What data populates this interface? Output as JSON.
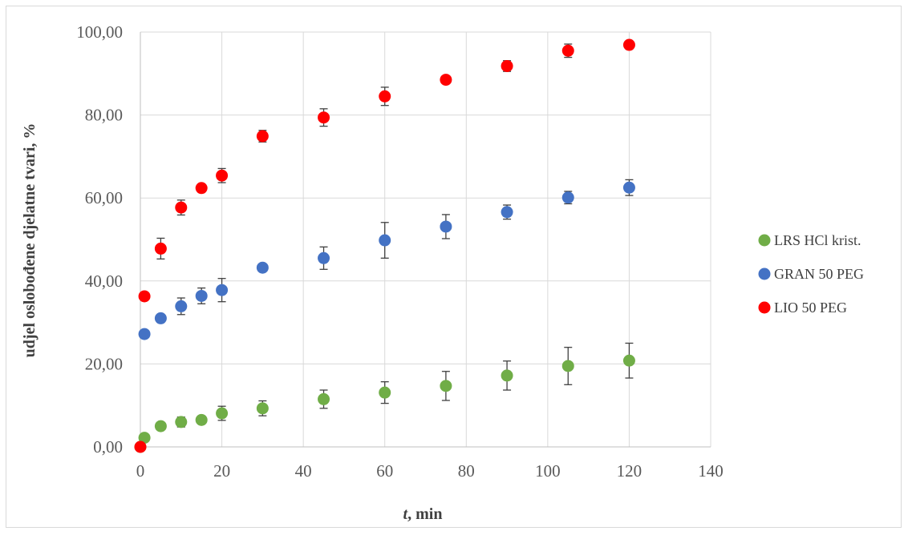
{
  "chart_data": {
    "type": "scatter",
    "xlabel_italic": "t",
    "xlabel_rest": ", min",
    "ylabel": "udjel oslobođene djelatne tvari, %",
    "xlim": [
      0,
      140
    ],
    "ylim": [
      0,
      100
    ],
    "x_ticks": [
      "0",
      "20",
      "40",
      "60",
      "80",
      "100",
      "120",
      "140"
    ],
    "y_ticks": [
      "0,00",
      "20,00",
      "40,00",
      "60,00",
      "80,00",
      "100,00"
    ],
    "grid": true,
    "legend_position": "right",
    "series": [
      {
        "name": "LRS HCl krist.",
        "color": "#70ad47",
        "points": [
          {
            "x": 0,
            "y": 0,
            "err": 0
          },
          {
            "x": 1,
            "y": 2.2,
            "err": 0
          },
          {
            "x": 5,
            "y": 5.0,
            "err": 0
          },
          {
            "x": 10,
            "y": 6.0,
            "err": 1.2
          },
          {
            "x": 15,
            "y": 6.5,
            "err": 0.8
          },
          {
            "x": 20,
            "y": 8.1,
            "err": 1.7
          },
          {
            "x": 30,
            "y": 9.3,
            "err": 1.8
          },
          {
            "x": 45,
            "y": 11.5,
            "err": 2.2
          },
          {
            "x": 60,
            "y": 13.1,
            "err": 2.6
          },
          {
            "x": 75,
            "y": 14.7,
            "err": 3.5
          },
          {
            "x": 90,
            "y": 17.2,
            "err": 3.5
          },
          {
            "x": 105,
            "y": 19.5,
            "err": 4.5
          },
          {
            "x": 120,
            "y": 20.8,
            "err": 4.2
          }
        ]
      },
      {
        "name": "GRAN 50 PEG",
        "color": "#4472c4",
        "points": [
          {
            "x": 1,
            "y": 27.2,
            "err": 0
          },
          {
            "x": 5,
            "y": 31.0,
            "err": 0
          },
          {
            "x": 10,
            "y": 33.9,
            "err": 2.0
          },
          {
            "x": 15,
            "y": 36.4,
            "err": 1.9
          },
          {
            "x": 20,
            "y": 37.8,
            "err": 2.8
          },
          {
            "x": 30,
            "y": 43.2,
            "err": 0
          },
          {
            "x": 45,
            "y": 45.5,
            "err": 2.7
          },
          {
            "x": 60,
            "y": 49.8,
            "err": 4.3
          },
          {
            "x": 75,
            "y": 53.1,
            "err": 2.9
          },
          {
            "x": 90,
            "y": 56.6,
            "err": 1.7
          },
          {
            "x": 105,
            "y": 60.1,
            "err": 1.5
          },
          {
            "x": 120,
            "y": 62.5,
            "err": 1.9
          }
        ]
      },
      {
        "name": "LIO 50 PEG",
        "color": "#ff0000",
        "points": [
          {
            "x": 0,
            "y": 0,
            "err": 0
          },
          {
            "x": 1,
            "y": 36.3,
            "err": 0
          },
          {
            "x": 5,
            "y": 47.8,
            "err": 2.5
          },
          {
            "x": 10,
            "y": 57.7,
            "err": 1.8
          },
          {
            "x": 15,
            "y": 62.4,
            "err": 0
          },
          {
            "x": 20,
            "y": 65.4,
            "err": 1.7
          },
          {
            "x": 30,
            "y": 74.9,
            "err": 1.4
          },
          {
            "x": 45,
            "y": 79.4,
            "err": 2.1
          },
          {
            "x": 60,
            "y": 84.5,
            "err": 2.2
          },
          {
            "x": 75,
            "y": 88.5,
            "err": 0.8
          },
          {
            "x": 90,
            "y": 91.8,
            "err": 1.3
          },
          {
            "x": 105,
            "y": 95.5,
            "err": 1.6
          },
          {
            "x": 120,
            "y": 96.9,
            "err": 0
          }
        ]
      }
    ]
  }
}
